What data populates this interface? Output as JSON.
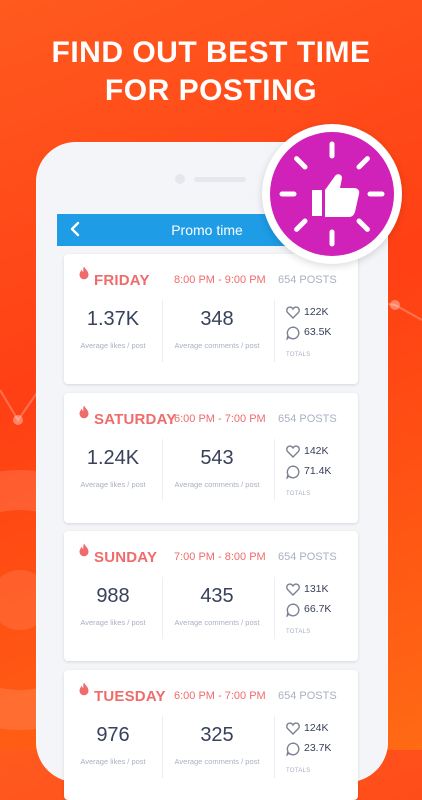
{
  "headline": {
    "line1": "FIND OUT BEST TIME",
    "line2": "FOR POSTING"
  },
  "appbar": {
    "back_icon": "chevron-left-icon",
    "title": "Promo time"
  },
  "badge": {
    "icon": "thumbs-up-clock-icon",
    "color": "#d021b9"
  },
  "colors": {
    "accent": "#f06b6b",
    "appbar": "#1e9ce6",
    "background": "#ff4a17"
  },
  "cards": [
    {
      "day": "FRIDAY",
      "time": "8:00 PM - 9:00 PM",
      "posts": "654 POSTS",
      "avg_likes": "1.37K",
      "avg_likes_label": "Average likes / post",
      "avg_comments": "348",
      "avg_comments_label": "Average comments / post",
      "total_likes": "122K",
      "total_comments": "63.5K",
      "totals_label": "TOTALS"
    },
    {
      "day": "SATURDAY",
      "time": "6:00 PM - 7:00 PM",
      "posts": "654 POSTS",
      "avg_likes": "1.24K",
      "avg_likes_label": "Average likes / post",
      "avg_comments": "543",
      "avg_comments_label": "Average comments / post",
      "total_likes": "142K",
      "total_comments": "71.4K",
      "totals_label": "TOTALS"
    },
    {
      "day": "SUNDAY",
      "time": "7:00 PM - 8:00 PM",
      "posts": "654 POSTS",
      "avg_likes": "988",
      "avg_likes_label": "Average likes / post",
      "avg_comments": "435",
      "avg_comments_label": "Average comments / post",
      "total_likes": "131K",
      "total_comments": "66.7K",
      "totals_label": "TOTALS"
    },
    {
      "day": "TUESDAY",
      "time": "6:00 PM - 7:00 PM",
      "posts": "654 POSTS",
      "avg_likes": "976",
      "avg_likes_label": "Average likes / post",
      "avg_comments": "325",
      "avg_comments_label": "Average comments / post",
      "total_likes": "124K",
      "total_comments": "23.7K",
      "totals_label": "TOTALS"
    }
  ]
}
